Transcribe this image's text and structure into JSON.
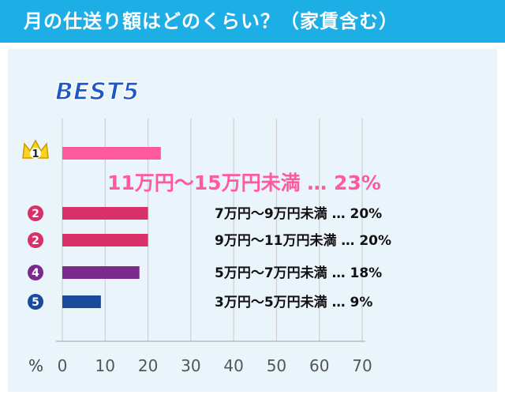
{
  "title": "月の仕送り額はどのくらい？（家賃含む）",
  "best_label": "BEST5",
  "axis_unit": "%",
  "colors": {
    "header": "#1eaee6",
    "panel": "#eaf4fb",
    "big_label": "#ff5aa0"
  },
  "chart_data": {
    "type": "bar",
    "orientation": "horizontal",
    "xlim": [
      0,
      70
    ],
    "ticks": [
      "0",
      "10",
      "20",
      "30",
      "40",
      "50",
      "60",
      "70"
    ],
    "grid": true,
    "categories": [
      "11万円〜15万円未満",
      "7万円〜9万円未満",
      "9万円〜11万円未満",
      "5万円〜7万円未満",
      "3万円〜5万円未満"
    ],
    "ranks": [
      "1",
      "2",
      "2",
      "4",
      "5"
    ],
    "values": [
      23,
      20,
      20,
      18,
      9
    ],
    "value_labels": [
      "23%",
      "20%",
      "20%",
      "18%",
      "9%"
    ],
    "colors": [
      "#ff5aa0",
      "#d9306a",
      "#d9306a",
      "#7a2a8c",
      "#1a4a9a"
    ]
  }
}
